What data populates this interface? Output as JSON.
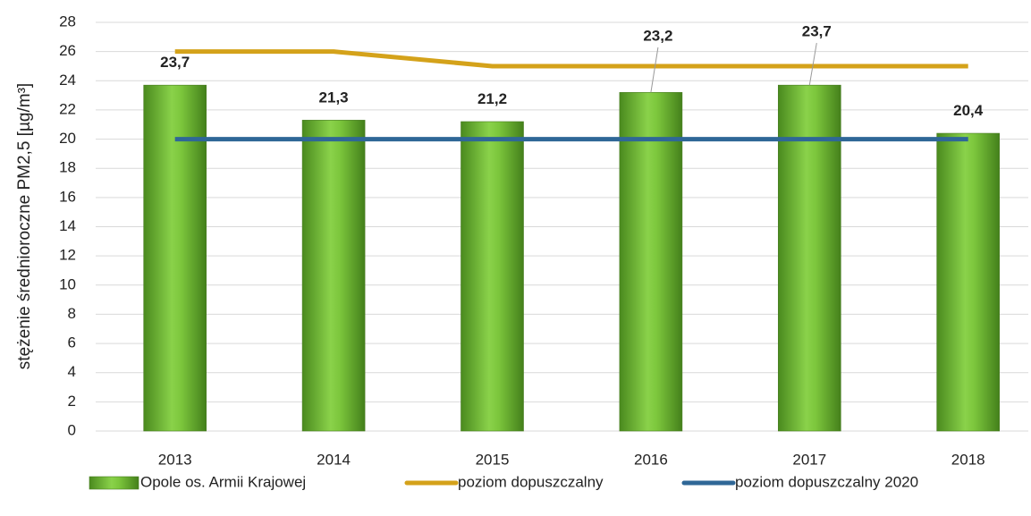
{
  "chart_data": {
    "type": "bar",
    "y_label": "stężenie średnioroczne PM2,5 [µg/m³]",
    "categories": [
      "2013",
      "2014",
      "2015",
      "2016",
      "2017",
      "2018"
    ],
    "series": [
      {
        "name": "Opole os. Armii Krajowej",
        "type": "bar",
        "color": "#6fbf35",
        "values": [
          23.7,
          21.3,
          21.2,
          23.2,
          23.7,
          20.4
        ],
        "value_labels": [
          "23,7",
          "21,3",
          "21,2",
          "23,2",
          "23,7",
          "20,4"
        ]
      },
      {
        "name": "poziom dopuszczalny",
        "type": "line",
        "color": "#d4a21a",
        "values": [
          26,
          26,
          25,
          25,
          25,
          25
        ]
      },
      {
        "name": "poziom dopuszczalny 2020",
        "type": "line",
        "color": "#2f6797",
        "values": [
          20,
          20,
          20,
          20,
          20,
          20
        ]
      }
    ],
    "ylim": [
      0,
      28
    ],
    "yticks": [
      0,
      2,
      4,
      6,
      8,
      10,
      12,
      14,
      16,
      18,
      20,
      22,
      24,
      26,
      28
    ],
    "grid": true,
    "legend": "bottom"
  }
}
